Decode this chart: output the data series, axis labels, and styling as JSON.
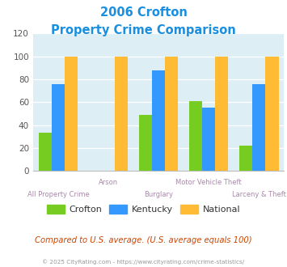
{
  "title_line1": "2006 Crofton",
  "title_line2": "Property Crime Comparison",
  "categories": [
    "All Property Crime",
    "Arson",
    "Burglary",
    "Motor Vehicle Theft",
    "Larceny & Theft"
  ],
  "crofton": [
    33,
    0,
    49,
    61,
    22
  ],
  "kentucky": [
    76,
    0,
    88,
    55,
    76
  ],
  "national": [
    100,
    100,
    100,
    100,
    100
  ],
  "color_crofton": "#77cc22",
  "color_kentucky": "#3399ff",
  "color_national": "#ffbb33",
  "ylim": [
    0,
    120
  ],
  "yticks": [
    0,
    20,
    40,
    60,
    80,
    100,
    120
  ],
  "bg_plot": "#ddeef5",
  "bg_fig": "#ffffff",
  "title_color": "#1a8fdf",
  "xlabel_color": "#aa88aa",
  "footer_note": "Compared to U.S. average. (U.S. average equals 100)",
  "footer_copy": "© 2025 CityRating.com - https://www.cityrating.com/crime-statistics/",
  "footer_note_color": "#cc4400",
  "footer_copy_color": "#999999",
  "legend_labels": [
    "Crofton",
    "Kentucky",
    "National"
  ]
}
